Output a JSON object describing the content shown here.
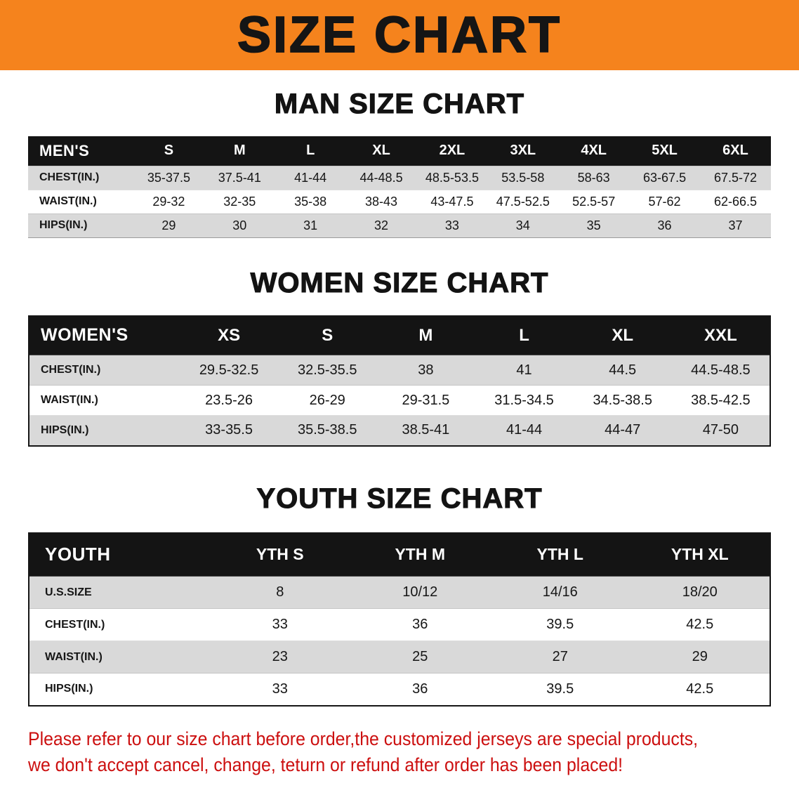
{
  "banner": {
    "title": "SIZE CHART"
  },
  "men": {
    "heading": "MAN SIZE CHART",
    "table": {
      "header": [
        "MEN'S",
        "S",
        "M",
        "L",
        "XL",
        "2XL",
        "3XL",
        "4XL",
        "5XL",
        "6XL"
      ],
      "rows": [
        [
          "CHEST(IN.)",
          "35-37.5",
          "37.5-41",
          "41-44",
          "44-48.5",
          "48.5-53.5",
          "53.5-58",
          "58-63",
          "63-67.5",
          "67.5-72"
        ],
        [
          "WAIST(IN.)",
          "29-32",
          "32-35",
          "35-38",
          "38-43",
          "43-47.5",
          "47.5-52.5",
          "52.5-57",
          "57-62",
          "62-66.5"
        ],
        [
          "HIPS(IN.)",
          "29",
          "30",
          "31",
          "32",
          "33",
          "34",
          "35",
          "36",
          "37"
        ]
      ]
    }
  },
  "women": {
    "heading": "WOMEN SIZE CHART",
    "table": {
      "header": [
        "WOMEN'S",
        "XS",
        "S",
        "M",
        "L",
        "XL",
        "XXL"
      ],
      "rows": [
        [
          "CHEST(IN.)",
          "29.5-32.5",
          "32.5-35.5",
          "38",
          "41",
          "44.5",
          "44.5-48.5"
        ],
        [
          "WAIST(IN.)",
          "23.5-26",
          "26-29",
          "29-31.5",
          "31.5-34.5",
          "34.5-38.5",
          "38.5-42.5"
        ],
        [
          "HIPS(IN.)",
          "33-35.5",
          "35.5-38.5",
          "38.5-41",
          "41-44",
          "44-47",
          "47-50"
        ]
      ]
    }
  },
  "youth": {
    "heading": "YOUTH SIZE CHART",
    "table": {
      "header": [
        "YOUTH",
        "YTH S",
        "YTH M",
        "YTH L",
        "YTH XL"
      ],
      "rows": [
        [
          "U.S.SIZE",
          "8",
          "10/12",
          "14/16",
          "18/20"
        ],
        [
          "CHEST(IN.)",
          "33",
          "36",
          "39.5",
          "42.5"
        ],
        [
          "WAIST(IN.)",
          "23",
          "25",
          "27",
          "29"
        ],
        [
          "HIPS(IN.)",
          "33",
          "36",
          "39.5",
          "42.5"
        ]
      ]
    }
  },
  "disclaimer": {
    "lines": [
      "Please refer to our size chart before order,the customized jerseys are special products,",
      "we don't accept cancel, change, teturn or refund after order has been placed!"
    ]
  },
  "colors": {
    "banner_bg": "#f5831d",
    "table_header_bg": "#141414",
    "row_stripe": "#d9d9d9",
    "disclaimer_text": "#cc0f0f"
  }
}
